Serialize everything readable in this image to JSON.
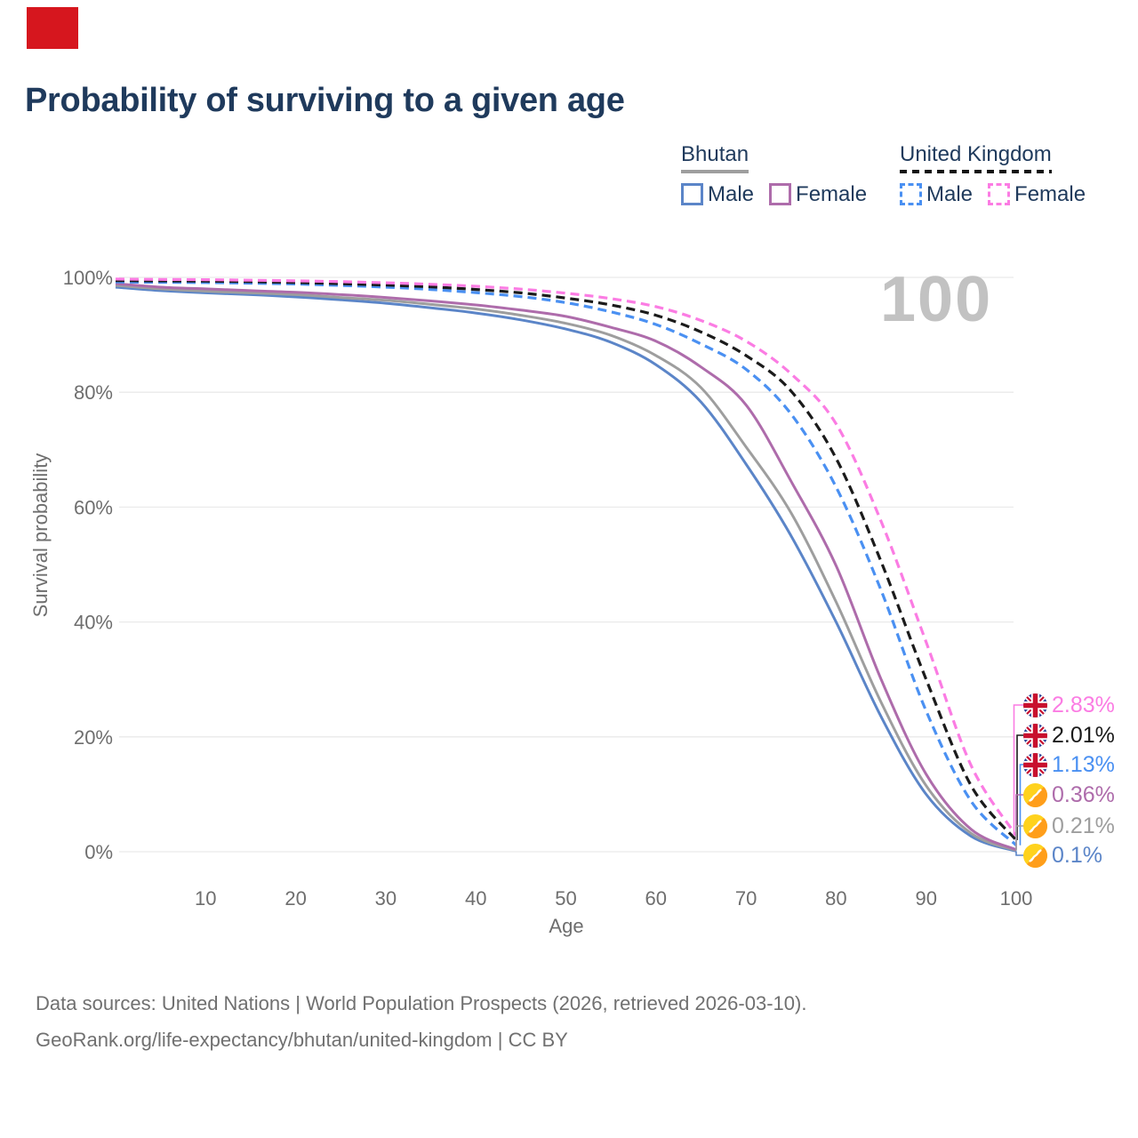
{
  "title": "Probability of surviving to a given age",
  "watermark": "100",
  "red_mark_color": "#d6161e",
  "legend": {
    "groups": [
      {
        "name": "Bhutan",
        "underline_style": "solid",
        "underline_color": "#9e9e9e",
        "items": [
          {
            "label": "Male",
            "color": "#5b85c8",
            "dashed": false
          },
          {
            "label": "Female",
            "color": "#ae6cab",
            "dashed": false
          }
        ]
      },
      {
        "name": "United Kingdom",
        "underline_style": "dashed",
        "underline_color": "#141414",
        "items": [
          {
            "label": "Male",
            "color": "#4a90f2",
            "dashed": true
          },
          {
            "label": "Female",
            "color": "#fb7ce3",
            "dashed": true
          }
        ]
      }
    ]
  },
  "chart_data": {
    "type": "line",
    "title": "Probability of surviving to a given age",
    "xlabel": "Age",
    "ylabel": "Survival probability",
    "xlim": [
      0,
      100
    ],
    "ylim": [
      0,
      100
    ],
    "grid": true,
    "x_ticks": [
      10,
      20,
      30,
      40,
      50,
      60,
      70,
      80,
      90,
      100
    ],
    "y_ticks": [
      0,
      20,
      40,
      60,
      80,
      100
    ],
    "y_tick_labels": [
      "0%",
      "20%",
      "40%",
      "60%",
      "80%",
      "100%"
    ],
    "x": [
      0,
      5,
      10,
      15,
      20,
      25,
      30,
      35,
      40,
      45,
      50,
      55,
      60,
      65,
      70,
      75,
      80,
      85,
      90,
      95,
      100
    ],
    "series": [
      {
        "name": "Bhutan Male",
        "color": "#5b85c8",
        "dash": false,
        "values": [
          98.3,
          97.7,
          97.3,
          97.0,
          96.6,
          96.1,
          95.5,
          94.7,
          93.8,
          92.6,
          91.0,
          88.7,
          84.8,
          78.3,
          67.5,
          55.0,
          40.0,
          23.5,
          10.0,
          2.7,
          0.1
        ]
      },
      {
        "name": "Bhutan Both sexes",
        "color": "#9e9e9e",
        "dash": false,
        "values": [
          98.6,
          98.0,
          97.6,
          97.3,
          97.0,
          96.5,
          96.0,
          95.3,
          94.5,
          93.4,
          92.0,
          89.9,
          86.4,
          80.8,
          70.5,
          59.0,
          43.5,
          26.0,
          11.5,
          3.2,
          0.21
        ]
      },
      {
        "name": "Bhutan Female",
        "color": "#ae6cab",
        "dash": false,
        "values": [
          98.9,
          98.3,
          98.0,
          97.7,
          97.4,
          97.0,
          96.5,
          95.9,
          95.2,
          94.3,
          93.2,
          91.3,
          88.9,
          84.4,
          77.8,
          64.5,
          49.8,
          30.0,
          13.5,
          3.9,
          0.36
        ]
      },
      {
        "name": "United Kingdom Male",
        "color": "#4a90f2",
        "dash": true,
        "values": [
          99.2,
          99.15,
          99.1,
          99.0,
          98.85,
          98.6,
          98.3,
          97.9,
          97.35,
          96.65,
          95.6,
          94.0,
          91.8,
          88.4,
          84.0,
          76.2,
          63.5,
          45.5,
          24.5,
          8.8,
          1.13
        ]
      },
      {
        "name": "United Kingdom Both sexes",
        "color": "#1b1b1b",
        "dash": true,
        "values": [
          99.45,
          99.4,
          99.35,
          99.25,
          99.1,
          98.9,
          98.65,
          98.35,
          97.9,
          97.3,
          96.4,
          95.2,
          93.4,
          90.5,
          86.4,
          80.2,
          68.5,
          50.5,
          30.0,
          11.5,
          2.01
        ]
      },
      {
        "name": "United Kingdom Female",
        "color": "#fb7ce3",
        "dash": true,
        "values": [
          99.7,
          99.65,
          99.6,
          99.5,
          99.4,
          99.25,
          99.05,
          98.8,
          98.45,
          97.95,
          97.25,
          96.3,
          94.9,
          92.5,
          88.9,
          83.2,
          74.5,
          57.5,
          36.5,
          15.0,
          2.83
        ]
      }
    ],
    "end_labels": [
      {
        "text": "2.83%",
        "value": 2.83,
        "color": "#fb7ce3",
        "flag": "uk"
      },
      {
        "text": "2.01%",
        "value": 2.01,
        "color": "#1b1b1b",
        "flag": "uk"
      },
      {
        "text": "1.13%",
        "value": 1.13,
        "color": "#4a90f2",
        "flag": "uk"
      },
      {
        "text": "0.36%",
        "value": 0.36,
        "color": "#ae6cab",
        "flag": "bhutan"
      },
      {
        "text": "0.21%",
        "value": 0.21,
        "color": "#9e9e9e",
        "flag": "bhutan"
      },
      {
        "text": "0.1%",
        "value": 0.1,
        "color": "#5b85c8",
        "flag": "bhutan"
      }
    ],
    "legend_position": "top-right"
  },
  "footer": {
    "line1": "Data sources: United Nations | World Population Prospects (2026, retrieved 2026-03-10).",
    "line2": "GeoRank.org/life-expectancy/bhutan/united-kingdom | CC BY"
  }
}
